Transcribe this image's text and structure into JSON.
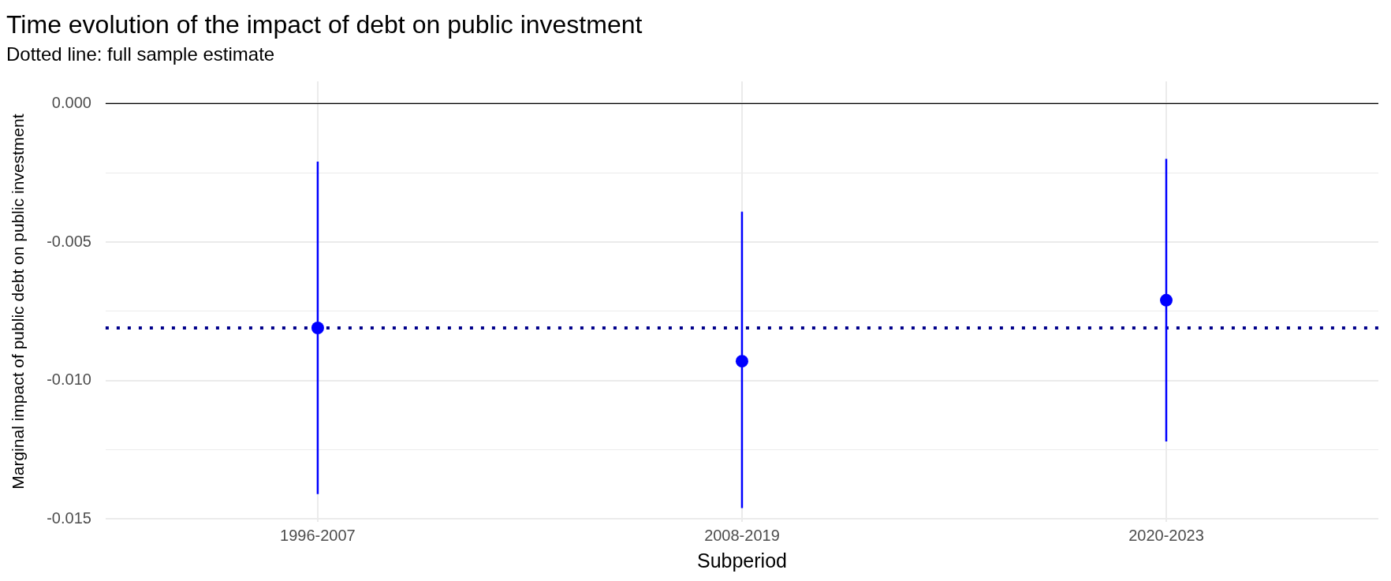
{
  "chart_data": {
    "type": "scatter",
    "title": "Time evolution of the impact of debt on public investment",
    "subtitle": "Dotted line: full sample estimate",
    "xlabel": "Subperiod",
    "ylabel": "Marginal impact of public debt on public investment",
    "categories": [
      "1996-2007",
      "2008-2019",
      "2020-2023"
    ],
    "series": [
      {
        "color": "#0000ff",
        "values": [
          -0.0081,
          -0.0093,
          -0.0071
        ],
        "errors": [
          [
            -0.0141,
            -0.0021
          ],
          [
            -0.0146,
            -0.0039
          ],
          [
            -0.0122,
            -0.002
          ]
        ]
      }
    ],
    "ylim": [
      -0.0151,
      0.0008
    ],
    "yticks": [
      {
        "value": -0.015,
        "label": "-0.015"
      },
      {
        "value": -0.0125,
        "label": null
      },
      {
        "value": -0.01,
        "label": "-0.010"
      },
      {
        "value": -0.0075,
        "label": null
      },
      {
        "value": -0.005,
        "label": "-0.005"
      },
      {
        "value": -0.0025,
        "label": null
      },
      {
        "value": 0,
        "label": "0.000"
      }
    ],
    "ref_lines": [
      {
        "axis": "y",
        "value": 0,
        "color": "#000000",
        "line_style": "solid"
      },
      {
        "axis": "y",
        "value": -0.0081,
        "color": "#00008b",
        "line_style": "dotted"
      }
    ],
    "grid": true,
    "marker": "circle",
    "legend": false
  }
}
